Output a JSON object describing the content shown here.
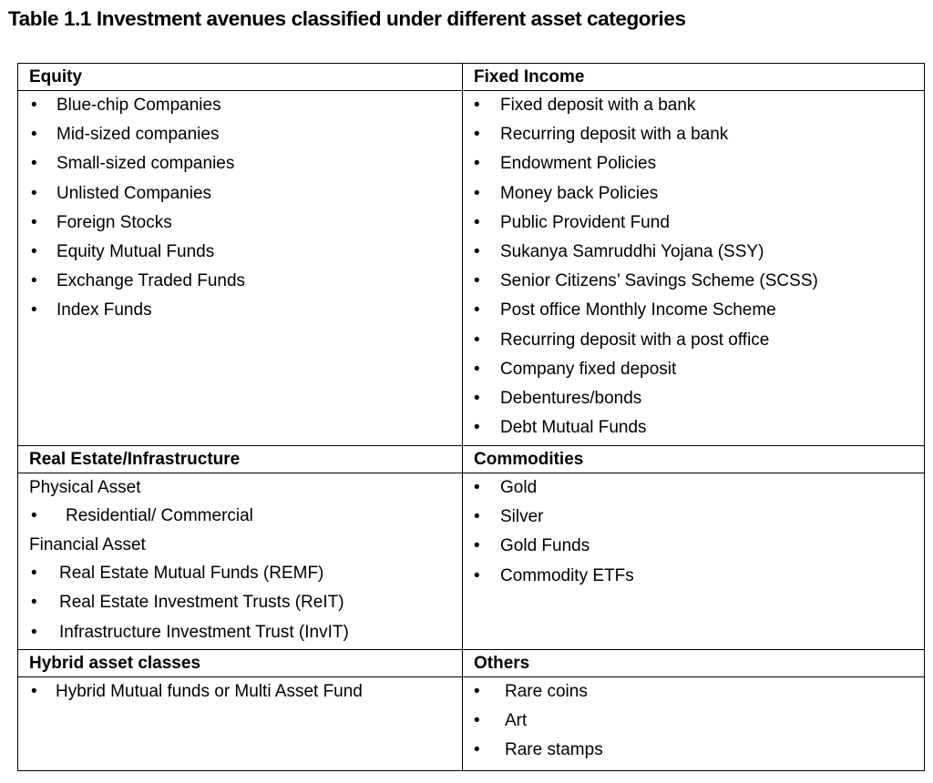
{
  "title": "Table 1.1 Investment avenues classified under different asset categories",
  "equity": {
    "header": "Equity",
    "items": [
      "Blue-chip Companies",
      "Mid-sized companies",
      "Small-sized companies",
      "Unlisted Companies",
      "Foreign Stocks",
      "Equity Mutual Funds",
      "Exchange Traded Funds",
      "Index Funds"
    ]
  },
  "fixed_income": {
    "header": "Fixed Income",
    "items": [
      "Fixed deposit with a bank",
      "Recurring deposit with a bank",
      "Endowment Policies",
      "Money back Policies",
      "Public Provident Fund",
      "Sukanya Samruddhi Yojana (SSY)",
      "Senior Citizens’ Savings Scheme (SCSS)",
      "Post office Monthly Income Scheme",
      "Recurring deposit with a post office",
      "Company fixed deposit",
      "Debentures/bonds",
      "Debt Mutual Funds"
    ]
  },
  "real_estate": {
    "header": "Real Estate/Infrastructure",
    "physical_label": "Physical Asset",
    "physical_items": [
      "Residential/ Commercial"
    ],
    "financial_label": "Financial Asset",
    "financial_items": [
      "Real Estate Mutual Funds (REMF)",
      "Real Estate Investment Trusts (ReIT)",
      "Infrastructure Investment Trust (InvIT)"
    ]
  },
  "commodities": {
    "header": "Commodities",
    "items": [
      "Gold",
      "Silver",
      "Gold Funds",
      "Commodity ETFs"
    ]
  },
  "hybrid": {
    "header": "Hybrid asset classes",
    "items": [
      "Hybrid Mutual funds or Multi Asset Fund"
    ]
  },
  "others": {
    "header": "Others",
    "items": [
      "Rare coins",
      "Art",
      "Rare stamps"
    ]
  }
}
